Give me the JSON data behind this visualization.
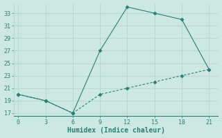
{
  "xlabel": "Humidex (Indice chaleur)",
  "line1_x": [
    0,
    3,
    6,
    9,
    12,
    15,
    18,
    21
  ],
  "line1_y": [
    20,
    19,
    17,
    27,
    34,
    33,
    32,
    24
  ],
  "line1_style": "-",
  "line2_x": [
    0,
    3,
    6,
    9,
    12,
    15,
    18,
    21
  ],
  "line2_y": [
    20,
    19,
    17,
    20,
    21,
    22,
    23,
    24
  ],
  "line2_style": "--",
  "line_color": "#2e7d72",
  "bg_color": "#cce8e3",
  "grid_color": "#b8d8d3",
  "xlim": [
    -0.5,
    22
  ],
  "ylim": [
    16.5,
    34.5
  ],
  "xticks": [
    0,
    3,
    6,
    9,
    12,
    15,
    18,
    21
  ],
  "yticks": [
    17,
    19,
    21,
    23,
    25,
    27,
    29,
    31,
    33
  ],
  "tick_fontsize": 6,
  "xlabel_fontsize": 7
}
